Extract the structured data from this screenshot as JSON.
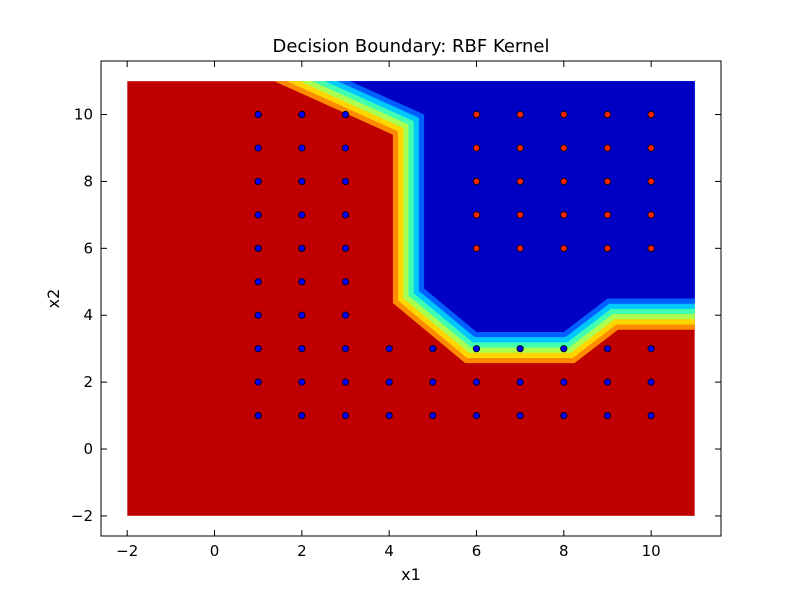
{
  "chart_data": {
    "type": "scatter",
    "title": "Decision Boundary: RBF Kernel",
    "xlabel": "x1",
    "ylabel": "x2",
    "xlim": [
      -2.6,
      11.6
    ],
    "ylim": [
      -2.6,
      11.6
    ],
    "xticks": [
      -2,
      0,
      2,
      4,
      6,
      8,
      10
    ],
    "yticks": [
      -2,
      0,
      2,
      4,
      6,
      8,
      10
    ],
    "xtick_labels": [
      "−2",
      "0",
      "2",
      "4",
      "6",
      "8",
      "10"
    ],
    "ytick_labels": [
      "−2",
      "0",
      "2",
      "4",
      "6",
      "8",
      "10"
    ],
    "grid": false,
    "background_region": {
      "x_range": [
        -2,
        11
      ],
      "y_range": [
        -2,
        11
      ],
      "outside_class_color": "#c00000",
      "inside_class_color": "#0000c4",
      "inside_region_polygon": [
        [
          3.1,
          11
        ],
        [
          4.8,
          10
        ],
        [
          4.8,
          4.8
        ],
        [
          6,
          3.5
        ],
        [
          8,
          3.5
        ],
        [
          9,
          4.5
        ],
        [
          11,
          4.5
        ],
        [
          11,
          11
        ]
      ],
      "transition_colors": [
        "#ff8c00",
        "#ffd700",
        "#aaff50",
        "#40ffb0",
        "#00c8ff",
        "#0060ff"
      ]
    },
    "series": [
      {
        "color": "#0000ff",
        "points": [
          [
            1,
            1
          ],
          [
            2,
            1
          ],
          [
            3,
            1
          ],
          [
            4,
            1
          ],
          [
            5,
            1
          ],
          [
            6,
            1
          ],
          [
            7,
            1
          ],
          [
            8,
            1
          ],
          [
            9,
            1
          ],
          [
            10,
            1
          ],
          [
            1,
            2
          ],
          [
            2,
            2
          ],
          [
            3,
            2
          ],
          [
            4,
            2
          ],
          [
            5,
            2
          ],
          [
            6,
            2
          ],
          [
            7,
            2
          ],
          [
            8,
            2
          ],
          [
            9,
            2
          ],
          [
            10,
            2
          ],
          [
            1,
            3
          ],
          [
            2,
            3
          ],
          [
            3,
            3
          ],
          [
            4,
            3
          ],
          [
            5,
            3
          ],
          [
            6,
            3
          ],
          [
            7,
            3
          ],
          [
            8,
            3
          ],
          [
            9,
            3
          ],
          [
            10,
            3
          ],
          [
            1,
            4
          ],
          [
            2,
            4
          ],
          [
            3,
            4
          ],
          [
            1,
            5
          ],
          [
            2,
            5
          ],
          [
            3,
            5
          ],
          [
            1,
            6
          ],
          [
            2,
            6
          ],
          [
            3,
            6
          ],
          [
            1,
            7
          ],
          [
            2,
            7
          ],
          [
            3,
            7
          ],
          [
            1,
            8
          ],
          [
            2,
            8
          ],
          [
            3,
            8
          ],
          [
            1,
            9
          ],
          [
            2,
            9
          ],
          [
            3,
            9
          ],
          [
            1,
            10
          ],
          [
            2,
            10
          ],
          [
            3,
            10
          ]
        ]
      },
      {
        "color": "#ff2200",
        "points": [
          [
            6,
            6
          ],
          [
            7,
            6
          ],
          [
            8,
            6
          ],
          [
            9,
            6
          ],
          [
            10,
            6
          ],
          [
            6,
            7
          ],
          [
            7,
            7
          ],
          [
            8,
            7
          ],
          [
            9,
            7
          ],
          [
            10,
            7
          ],
          [
            6,
            8
          ],
          [
            7,
            8
          ],
          [
            8,
            8
          ],
          [
            9,
            8
          ],
          [
            10,
            8
          ],
          [
            6,
            9
          ],
          [
            7,
            9
          ],
          [
            8,
            9
          ],
          [
            9,
            9
          ],
          [
            10,
            9
          ],
          [
            6,
            10
          ],
          [
            7,
            10
          ],
          [
            8,
            10
          ],
          [
            9,
            10
          ],
          [
            10,
            10
          ]
        ]
      }
    ]
  }
}
